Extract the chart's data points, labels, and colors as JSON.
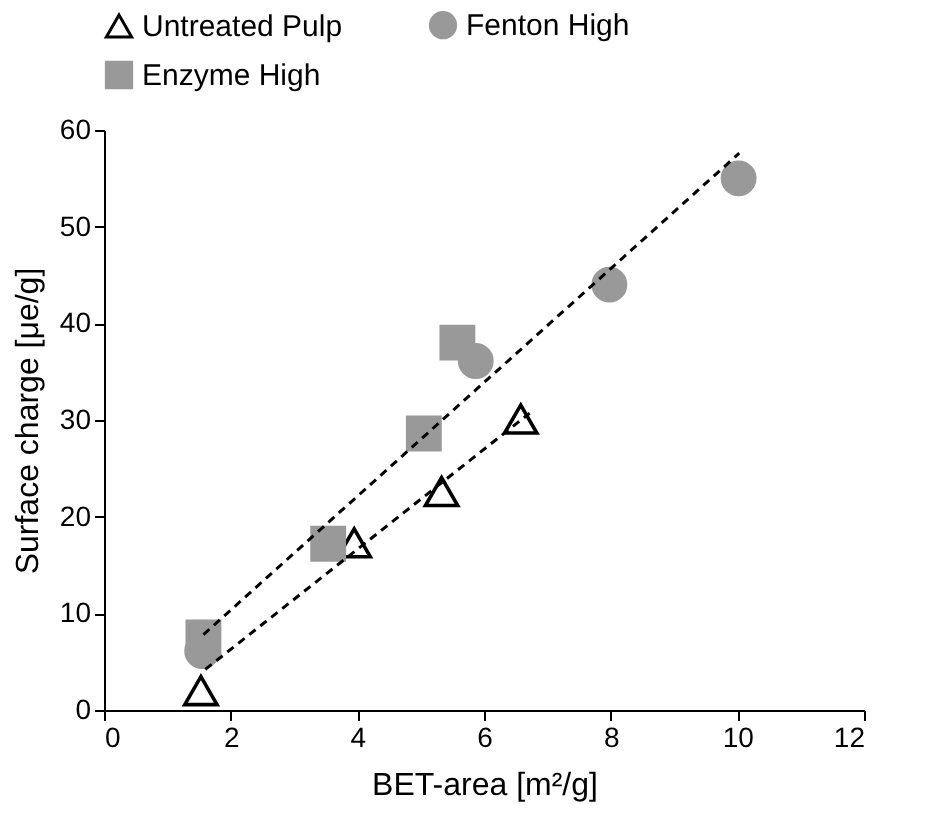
{
  "chart_data": {
    "type": "scatter",
    "xlabel": "BET-area [m²/g]",
    "ylabel": "Surface charge [μe/g]",
    "xlim": [
      0,
      12
    ],
    "ylim": [
      0,
      60
    ],
    "xticks": [
      0,
      2,
      4,
      6,
      8,
      10,
      12
    ],
    "yticks": [
      0,
      10,
      20,
      30,
      40,
      50,
      60
    ],
    "grid": false,
    "legend": "top",
    "series": [
      {
        "name": "Untreated Pulp",
        "color": "#000000",
        "marker": "triangle",
        "x": [
          1.53,
          3.95,
          5.33,
          6.58
        ],
        "values": [
          2,
          17.3,
          22.6,
          30.1
        ]
      },
      {
        "name": "Fenton High",
        "color": "#999999",
        "marker": "circle",
        "x": [
          1.55,
          5.87,
          7.98,
          10.02
        ],
        "values": [
          6.1,
          36.1,
          44,
          55
        ]
      },
      {
        "name": "Enzyme High",
        "color": "#999999",
        "marker": "square",
        "x": [
          1.57,
          3.54,
          5.05,
          5.58
        ],
        "values": [
          7.5,
          17.2,
          28.6,
          38
        ]
      },
      {
        "type": "line",
        "color": "#000000",
        "line_style": "dashed",
        "marker": "none",
        "x": [
          1.57,
          10.03
        ],
        "values": [
          7.8,
          57.6
        ]
      },
      {
        "type": "line",
        "color": "#000000",
        "line_style": "dashed",
        "marker": "none",
        "x": [
          1.6,
          6.72
        ],
        "values": [
          4.2,
          30.7
        ]
      }
    ]
  }
}
